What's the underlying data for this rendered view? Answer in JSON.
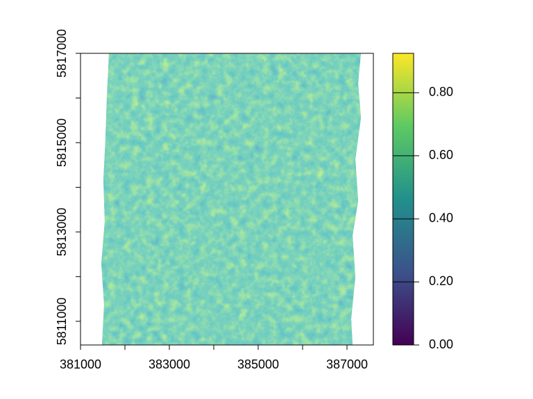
{
  "chart_data": {
    "type": "raster",
    "xlim": [
      381000,
      387594
    ],
    "ylim": [
      5810470,
      5817000
    ],
    "xticks": [
      381000,
      383000,
      385000,
      387000
    ],
    "xticks_minor": [
      382000,
      384000,
      386000
    ],
    "yticks": [
      5811000,
      5813000,
      5815000,
      5817000
    ],
    "yticks_minor": [
      5812000,
      5814000,
      5816000
    ],
    "zlim": [
      0,
      0.925
    ],
    "zticks": [
      {
        "value": 0,
        "label": "0.00"
      },
      {
        "value": 0.2,
        "label": "0.20"
      },
      {
        "value": 0.4,
        "label": "0.40"
      },
      {
        "value": 0.6,
        "label": "0.60"
      },
      {
        "value": 0.8,
        "label": "0.80"
      }
    ],
    "colors": [
      "#440154",
      "#3b528b",
      "#21908c",
      "#5dc963",
      "#fde725"
    ]
  }
}
